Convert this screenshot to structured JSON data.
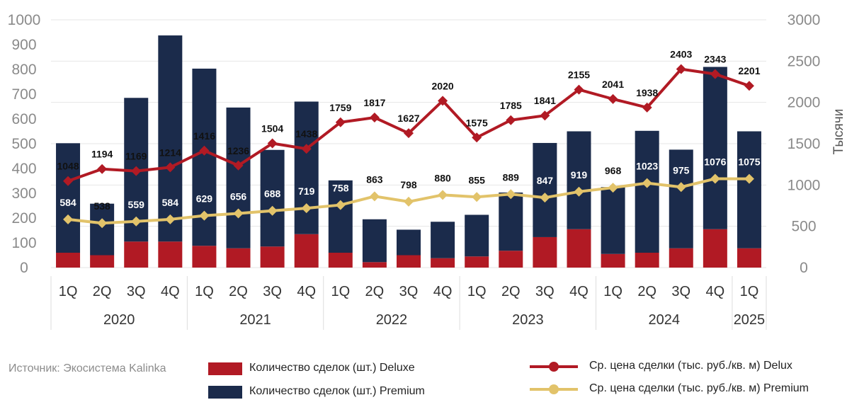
{
  "source": "Источник: Экосистема Kalinka",
  "colors": {
    "deluxe_bar": "#b11a24",
    "premium_bar": "#1b2b4b",
    "delux_line": "#b11a24",
    "premium_line": "#e2c36a",
    "grid": "#e6e6e6"
  },
  "legend": {
    "deluxe_count": "Количество сделок (шт.) Deluxe",
    "premium_count": "Количество сделок (шт.) Premium",
    "delux_price": "Ср. цена сделки (тыс. руб./кв. м) Delux",
    "premium_price": "Ср. цена сделки (тыс. руб./кв. м) Premium"
  },
  "chart_data": {
    "type": "bar",
    "categories": [
      "1Q",
      "2Q",
      "3Q",
      "4Q",
      "1Q",
      "2Q",
      "3Q",
      "4Q",
      "1Q",
      "2Q",
      "3Q",
      "4Q",
      "1Q",
      "2Q",
      "3Q",
      "4Q",
      "1Q",
      "2Q",
      "3Q",
      "4Q",
      "1Q"
    ],
    "years": [
      {
        "label": "2020",
        "count": 4
      },
      {
        "label": "2021",
        "count": 4
      },
      {
        "label": "2022",
        "count": 4
      },
      {
        "label": "2023",
        "count": 4
      },
      {
        "label": "2024",
        "count": 4
      },
      {
        "label": "2025",
        "count": 1
      }
    ],
    "y_left": {
      "min": 0,
      "max": 1000,
      "ticks": [
        "0",
        "100",
        "200",
        "300",
        "400",
        "500",
        "600",
        "700",
        "800",
        "900",
        "1000"
      ]
    },
    "y_right": {
      "min": 0,
      "max": 3000,
      "label": "Тысячи",
      "ticks": [
        "0",
        "500",
        "1000",
        "1500",
        "2000",
        "2500",
        "3000"
      ]
    },
    "series": [
      {
        "name": "Количество сделок (шт.) Deluxe",
        "type": "bar",
        "axis": "left",
        "values": [
          60,
          50,
          105,
          105,
          88,
          78,
          85,
          135,
          60,
          22,
          50,
          38,
          45,
          68,
          123,
          155,
          55,
          60,
          78,
          155,
          78
        ]
      },
      {
        "name": "Количество сделок (шт.) Premium",
        "type": "bar",
        "axis": "left",
        "values": [
          442,
          208,
          580,
          832,
          715,
          568,
          390,
          535,
          292,
          173,
          103,
          147,
          168,
          235,
          380,
          395,
          270,
          492,
          398,
          655,
          472
        ]
      },
      {
        "name": "Ср. цена сделки (тыс. руб./кв. м) Delux",
        "type": "line",
        "axis": "right",
        "values": [
          1048,
          1194,
          1169,
          1214,
          1416,
          1236,
          1504,
          1438,
          1759,
          1817,
          1627,
          2020,
          1575,
          1785,
          1841,
          2155,
          2041,
          1938,
          2403,
          2343,
          2201
        ],
        "labels": [
          "1048",
          "1194",
          "1169",
          "1214",
          "1416",
          "1236",
          "1504",
          "1438",
          "1759",
          "1817",
          "1627",
          "2020",
          "1575",
          "1785",
          "1841",
          "2155",
          "2041",
          "1938",
          "2403",
          "2343",
          "2201"
        ]
      },
      {
        "name": "Ср. цена сделки (тыс. руб./кв. м) Premium",
        "type": "line",
        "axis": "right",
        "values": [
          584,
          538,
          559,
          584,
          629,
          656,
          688,
          719,
          758,
          863,
          798,
          880,
          855,
          889,
          847,
          919,
          968,
          1023,
          975,
          1076,
          1075
        ],
        "labels": [
          "584",
          "538",
          "559",
          "584",
          "629",
          "656",
          "688",
          "719",
          "758",
          "863",
          "798",
          "880",
          "855",
          "889",
          "847",
          "919",
          "968",
          "1023",
          "975",
          "1076",
          "1075"
        ]
      }
    ],
    "grid": true,
    "legend_position": "bottom"
  }
}
